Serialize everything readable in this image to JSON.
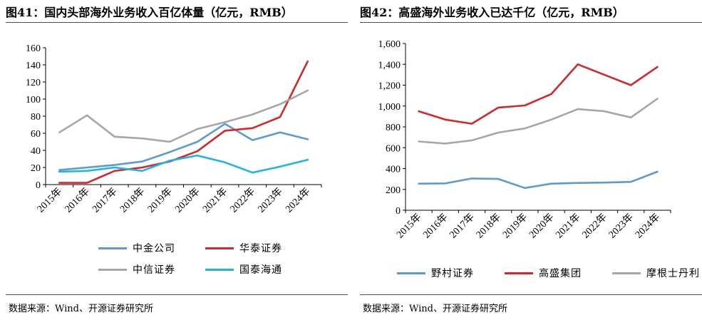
{
  "source_text": "数据来源：Wind、开源证券研究所",
  "chart_data": [
    {
      "type": "line",
      "title": "图41：国内头部海外业务收入百亿体量（亿元，RMB）",
      "categories": [
        "2015年",
        "2016年",
        "2017年",
        "2018年",
        "2019年",
        "2020年",
        "2021年",
        "2022年",
        "2023年",
        "2024年"
      ],
      "ylim": [
        0,
        160
      ],
      "yticks": [
        0,
        20,
        40,
        60,
        80,
        100,
        120,
        140,
        160
      ],
      "ytick_labels": [
        "0",
        "20",
        "40",
        "60",
        "80",
        "100",
        "120",
        "140",
        "160"
      ],
      "grid": false,
      "legend_position": "bottom",
      "series": [
        {
          "name": "中金公司",
          "color": "#5b9bd5",
          "values": [
            17,
            20,
            23,
            27,
            38,
            50,
            71,
            52,
            61,
            53
          ]
        },
        {
          "name": "华泰证券",
          "color": "#d62728",
          "values": [
            2,
            2,
            16,
            20,
            27,
            39,
            63,
            66,
            79,
            144
          ]
        },
        {
          "name": "中信证券",
          "color": "#a6a6a6",
          "values": [
            61,
            81,
            56,
            54,
            50,
            65,
            73,
            82,
            94,
            110
          ]
        },
        {
          "name": "国泰海通",
          "color": "#1eb4e6",
          "values": [
            15,
            16,
            20,
            16,
            28,
            34,
            26,
            14,
            21,
            29
          ]
        }
      ]
    },
    {
      "type": "line",
      "title": "图42：高盛海外业务收入已达千亿（亿元，RMB）",
      "categories": [
        "2015年",
        "2016年",
        "2017年",
        "2018年",
        "2019年",
        "2020年",
        "2021年",
        "2022年",
        "2023年",
        "2024年"
      ],
      "ylim": [
        0,
        1600
      ],
      "yticks": [
        0,
        200,
        400,
        600,
        800,
        1000,
        1200,
        1400,
        1600
      ],
      "ytick_labels": [
        "0",
        "200",
        "400",
        "600",
        "800",
        "1,000",
        "1,200",
        "1,400",
        "1,600"
      ],
      "grid": false,
      "legend_position": "bottom",
      "series": [
        {
          "name": "野村证券",
          "color": "#5b9bd5",
          "values": [
            255,
            258,
            305,
            300,
            213,
            255,
            262,
            265,
            272,
            370
          ]
        },
        {
          "name": "高盛集团",
          "color": "#d62728",
          "values": [
            950,
            870,
            830,
            985,
            1005,
            1115,
            1400,
            1300,
            1200,
            1375
          ]
        },
        {
          "name": "摩根士丹利",
          "color": "#a6a6a6",
          "values": [
            660,
            640,
            670,
            745,
            785,
            870,
            970,
            950,
            890,
            1070
          ]
        }
      ]
    }
  ]
}
